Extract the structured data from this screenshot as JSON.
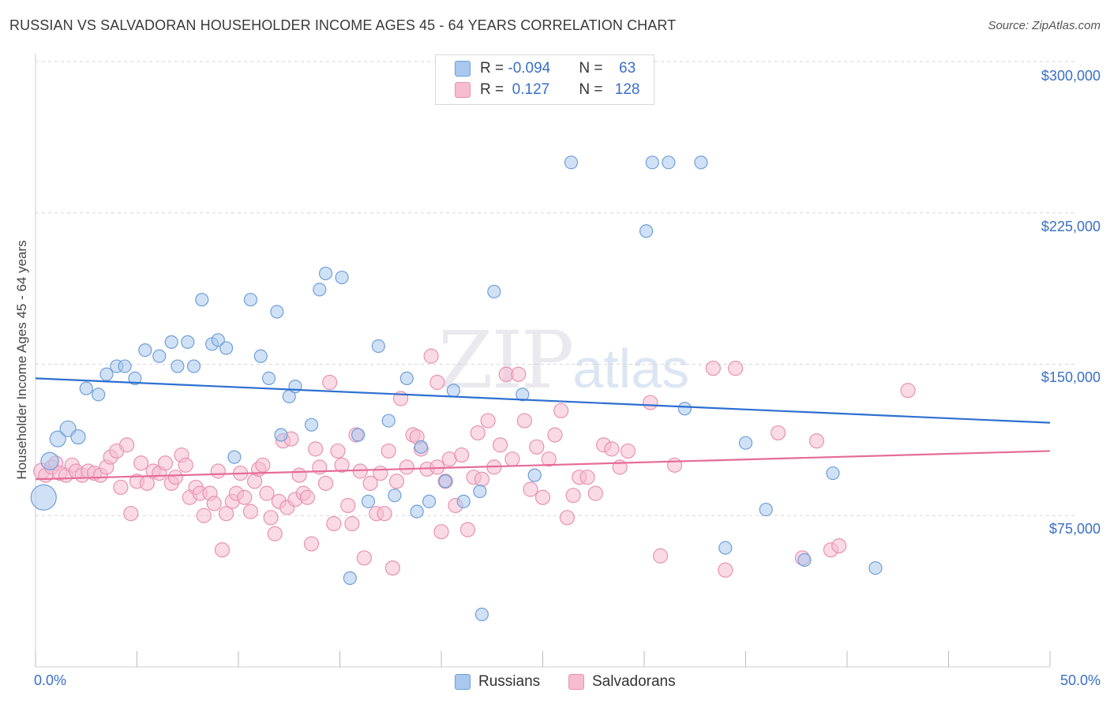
{
  "title": "RUSSIAN VS SALVADORAN HOUSEHOLDER INCOME AGES 45 - 64 YEARS CORRELATION CHART",
  "source": "Source: ZipAtlas.com",
  "watermark": {
    "zip": "ZIP",
    "atlas": "atlas"
  },
  "legend": {
    "russians": {
      "r_label": "R = ",
      "r_value": "-0.094",
      "n_label": "N = ",
      "n_value": " 63"
    },
    "salvadorans": {
      "r_label": "R = ",
      "r_value": " 0.127",
      "n_label": "N = ",
      "n_value": "128"
    }
  },
  "bottom_legend": {
    "russians": "Russians",
    "salvadorans": "Salvadorans"
  },
  "colors": {
    "russians_fill": "#aac8ef",
    "russians_stroke": "#6f9fd8",
    "russians_line": "#2e6fd0",
    "salvadorans_fill": "#f6bcd0",
    "salvadorans_stroke": "#e892b2",
    "salvadorans_line": "#e56c98",
    "axis_text": "#3a6fc8",
    "grid": "#d6d6d6"
  },
  "chart_data": {
    "type": "scatter",
    "ylabel": "Householder Income Ages 45 - 64 years",
    "xlabel": "",
    "xlim": [
      0,
      50
    ],
    "ylim": [
      0,
      300000
    ],
    "x_tick_labels": [
      "0.0%",
      "50.0%"
    ],
    "y_ticks": [
      75000,
      150000,
      225000,
      300000
    ],
    "y_tick_labels": [
      "$75,000",
      "$150,000",
      "$225,000",
      "$300,000"
    ],
    "grid": "horizontal dashed",
    "legend_position": "top-center",
    "series": [
      {
        "name": "Russians",
        "trend": {
          "x": [
            0,
            50
          ],
          "y": [
            143000,
            121000
          ]
        },
        "points": [
          [
            0.4,
            84000,
            16
          ],
          [
            0.7,
            102000,
            11
          ],
          [
            1.1,
            113000,
            10
          ],
          [
            1.6,
            118000,
            10
          ],
          [
            2.1,
            114000,
            9
          ],
          [
            2.5,
            138000,
            8
          ],
          [
            3.1,
            135000,
            8
          ],
          [
            3.5,
            145000,
            8
          ],
          [
            4.0,
            149000,
            8
          ],
          [
            4.4,
            149000,
            8
          ],
          [
            4.9,
            143000,
            8
          ],
          [
            5.4,
            157000,
            8
          ],
          [
            6.1,
            154000,
            8
          ],
          [
            6.7,
            161000,
            8
          ],
          [
            7.0,
            149000,
            8
          ],
          [
            7.5,
            161000,
            8
          ],
          [
            7.8,
            149000,
            8
          ],
          [
            8.2,
            182000,
            8
          ],
          [
            8.7,
            160000,
            8
          ],
          [
            9.0,
            162000,
            8
          ],
          [
            9.4,
            158000,
            8
          ],
          [
            9.8,
            104000,
            8
          ],
          [
            10.6,
            182000,
            8
          ],
          [
            11.1,
            154000,
            8
          ],
          [
            11.5,
            143000,
            8
          ],
          [
            11.9,
            176000,
            8
          ],
          [
            12.1,
            115000,
            8
          ],
          [
            12.5,
            134000,
            8
          ],
          [
            12.8,
            139000,
            8
          ],
          [
            13.6,
            120000,
            8
          ],
          [
            14.0,
            187000,
            8
          ],
          [
            14.3,
            195000,
            8
          ],
          [
            15.1,
            193000,
            8
          ],
          [
            15.5,
            44000,
            8
          ],
          [
            15.9,
            115000,
            8
          ],
          [
            16.4,
            82000,
            8
          ],
          [
            16.9,
            159000,
            8
          ],
          [
            17.4,
            122000,
            8
          ],
          [
            17.7,
            85000,
            8
          ],
          [
            18.3,
            143000,
            8
          ],
          [
            18.8,
            77000,
            8
          ],
          [
            19.0,
            109000,
            8
          ],
          [
            19.4,
            82000,
            8
          ],
          [
            20.2,
            92000,
            8
          ],
          [
            20.6,
            137000,
            8
          ],
          [
            21.1,
            82000,
            8
          ],
          [
            21.9,
            87000,
            8
          ],
          [
            22.0,
            26000,
            8
          ],
          [
            22.6,
            186000,
            8
          ],
          [
            24.0,
            135000,
            8
          ],
          [
            24.6,
            95000,
            8
          ],
          [
            26.4,
            250000,
            8
          ],
          [
            30.1,
            216000,
            8
          ],
          [
            30.4,
            250000,
            8
          ],
          [
            31.2,
            250000,
            8
          ],
          [
            32.0,
            128000,
            8
          ],
          [
            32.8,
            250000,
            8
          ],
          [
            34.0,
            59000,
            8
          ],
          [
            35.0,
            111000,
            8
          ],
          [
            36.0,
            78000,
            8
          ],
          [
            37.9,
            53000,
            8
          ],
          [
            39.3,
            96000,
            8
          ],
          [
            41.4,
            49000,
            8
          ]
        ]
      },
      {
        "name": "Salvadorans",
        "trend": {
          "x": [
            0,
            50
          ],
          "y": [
            93000,
            107000
          ]
        },
        "points": [
          [
            0.3,
            97000,
            10
          ],
          [
            0.5,
            95000,
            9
          ],
          [
            0.8,
            99000,
            9
          ],
          [
            1.0,
            101000,
            9
          ],
          [
            1.2,
            96000,
            9
          ],
          [
            1.5,
            95000,
            9
          ],
          [
            1.8,
            100000,
            9
          ],
          [
            2.0,
            97000,
            9
          ],
          [
            2.3,
            95000,
            9
          ],
          [
            2.6,
            97000,
            9
          ],
          [
            2.9,
            96000,
            9
          ],
          [
            3.2,
            95000,
            9
          ],
          [
            3.5,
            99000,
            9
          ],
          [
            3.7,
            104000,
            9
          ],
          [
            4.0,
            107000,
            9
          ],
          [
            4.2,
            89000,
            9
          ],
          [
            4.5,
            110000,
            9
          ],
          [
            4.7,
            76000,
            9
          ],
          [
            5.0,
            92000,
            9
          ],
          [
            5.2,
            101000,
            9
          ],
          [
            5.5,
            91000,
            9
          ],
          [
            5.8,
            97000,
            9
          ],
          [
            6.1,
            96000,
            9
          ],
          [
            6.4,
            101000,
            9
          ],
          [
            6.7,
            91000,
            9
          ],
          [
            6.9,
            94000,
            9
          ],
          [
            7.2,
            105000,
            9
          ],
          [
            7.4,
            100000,
            9
          ],
          [
            7.6,
            84000,
            9
          ],
          [
            7.9,
            89000,
            9
          ],
          [
            8.1,
            86000,
            9
          ],
          [
            8.3,
            75000,
            9
          ],
          [
            8.6,
            86000,
            9
          ],
          [
            8.8,
            81000,
            9
          ],
          [
            9.0,
            97000,
            9
          ],
          [
            9.2,
            58000,
            9
          ],
          [
            9.4,
            76000,
            9
          ],
          [
            9.7,
            82000,
            9
          ],
          [
            9.9,
            86000,
            9
          ],
          [
            10.1,
            96000,
            9
          ],
          [
            10.3,
            84000,
            9
          ],
          [
            10.6,
            77000,
            9
          ],
          [
            10.8,
            92000,
            9
          ],
          [
            11.0,
            98000,
            9
          ],
          [
            11.2,
            100000,
            9
          ],
          [
            11.4,
            86000,
            9
          ],
          [
            11.6,
            74000,
            9
          ],
          [
            11.8,
            66000,
            9
          ],
          [
            12.0,
            82000,
            9
          ],
          [
            12.2,
            112000,
            9
          ],
          [
            12.4,
            79000,
            9
          ],
          [
            12.6,
            113000,
            9
          ],
          [
            12.8,
            83000,
            9
          ],
          [
            13.0,
            95000,
            9
          ],
          [
            13.2,
            86000,
            9
          ],
          [
            13.4,
            84000,
            9
          ],
          [
            13.6,
            61000,
            9
          ],
          [
            13.8,
            108000,
            9
          ],
          [
            14.0,
            99000,
            9
          ],
          [
            14.3,
            91000,
            9
          ],
          [
            14.5,
            141000,
            9
          ],
          [
            14.7,
            71000,
            9
          ],
          [
            14.9,
            107000,
            9
          ],
          [
            15.1,
            100000,
            9
          ],
          [
            15.4,
            80000,
            9
          ],
          [
            15.6,
            71000,
            9
          ],
          [
            15.8,
            115000,
            9
          ],
          [
            16.0,
            97000,
            9
          ],
          [
            16.2,
            54000,
            9
          ],
          [
            16.5,
            91000,
            9
          ],
          [
            16.8,
            76000,
            9
          ],
          [
            17.0,
            96000,
            9
          ],
          [
            17.2,
            76000,
            9
          ],
          [
            17.4,
            107000,
            9
          ],
          [
            17.6,
            49000,
            9
          ],
          [
            17.8,
            92000,
            9
          ],
          [
            18.0,
            133000,
            9
          ],
          [
            18.3,
            99000,
            9
          ],
          [
            18.6,
            115000,
            9
          ],
          [
            18.8,
            114000,
            9
          ],
          [
            19.0,
            108000,
            9
          ],
          [
            19.3,
            98000,
            9
          ],
          [
            19.5,
            154000,
            9
          ],
          [
            19.8,
            141000,
            9
          ],
          [
            20.0,
            67000,
            9
          ],
          [
            20.2,
            92000,
            9
          ],
          [
            20.4,
            103000,
            9
          ],
          [
            20.7,
            80000,
            9
          ],
          [
            21.0,
            105000,
            9
          ],
          [
            21.3,
            68000,
            9
          ],
          [
            21.6,
            94000,
            9
          ],
          [
            21.8,
            116000,
            9
          ],
          [
            22.0,
            93000,
            9
          ],
          [
            22.3,
            122000,
            9
          ],
          [
            22.6,
            99000,
            9
          ],
          [
            22.9,
            110000,
            9
          ],
          [
            23.2,
            145000,
            9
          ],
          [
            23.5,
            103000,
            9
          ],
          [
            23.8,
            145000,
            9
          ],
          [
            24.1,
            122000,
            9
          ],
          [
            24.4,
            88000,
            9
          ],
          [
            24.7,
            109000,
            9
          ],
          [
            25.0,
            84000,
            9
          ],
          [
            25.3,
            103000,
            9
          ],
          [
            25.6,
            115000,
            9
          ],
          [
            25.9,
            127000,
            9
          ],
          [
            26.2,
            74000,
            9
          ],
          [
            26.5,
            85000,
            9
          ],
          [
            26.8,
            94000,
            9
          ],
          [
            27.2,
            94000,
            9
          ],
          [
            27.6,
            86000,
            9
          ],
          [
            28.0,
            110000,
            9
          ],
          [
            28.4,
            108000,
            9
          ],
          [
            28.8,
            99000,
            9
          ],
          [
            29.2,
            107000,
            9
          ],
          [
            30.3,
            131000,
            9
          ],
          [
            30.8,
            55000,
            9
          ],
          [
            31.5,
            100000,
            9
          ],
          [
            33.4,
            148000,
            9
          ],
          [
            34.0,
            48000,
            9
          ],
          [
            34.5,
            148000,
            9
          ],
          [
            36.6,
            116000,
            9
          ],
          [
            37.8,
            54000,
            9
          ],
          [
            38.5,
            112000,
            9
          ],
          [
            39.2,
            58000,
            9
          ],
          [
            39.6,
            60000,
            9
          ],
          [
            43.0,
            137000,
            9
          ],
          [
            19.8,
            99000,
            9
          ]
        ]
      }
    ]
  }
}
